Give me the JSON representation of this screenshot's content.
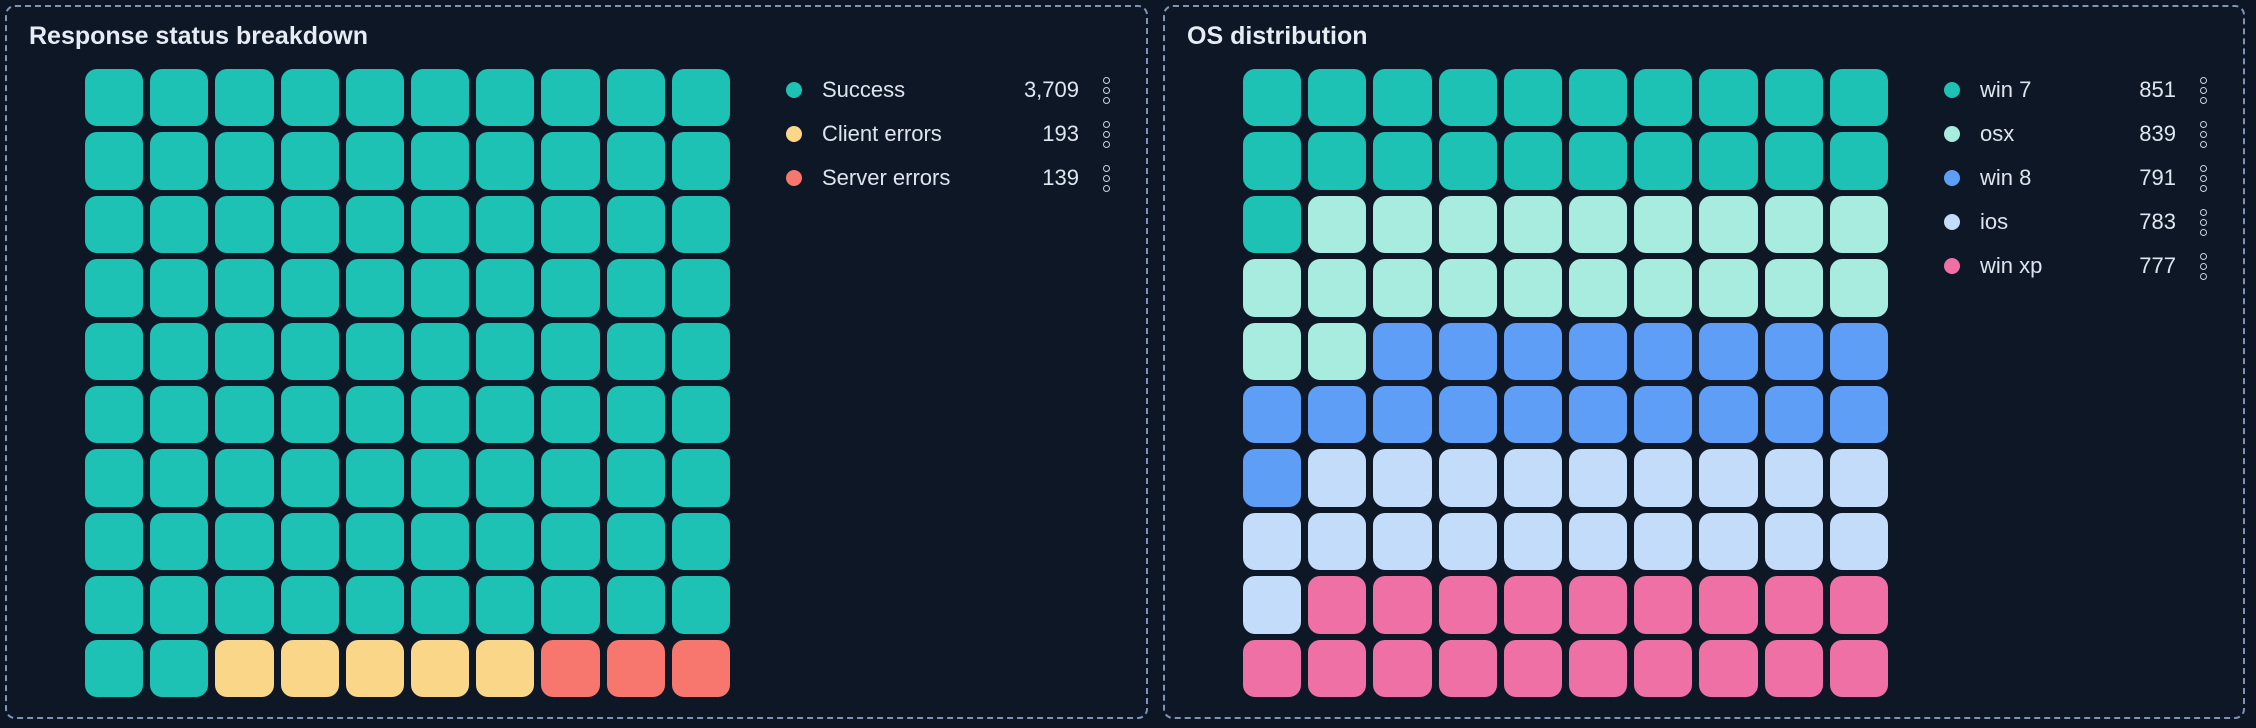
{
  "colors": {
    "page_bg": "#0c1624",
    "panel_bg": "#0d1726",
    "panel_border": "#8094b5",
    "title_text": "#e6ecf4",
    "legend_text": "#dde4ee",
    "kebab_icon": "#c9d3e2"
  },
  "panels": [
    {
      "title": "Response status breakdown",
      "grid": {
        "rows": 10,
        "cols": 10
      },
      "legend": [
        {
          "label": "Success",
          "value": "3,709",
          "color": "#1dc2b5",
          "cells": 92
        },
        {
          "label": "Client errors",
          "value": "193",
          "color": "#fad688",
          "cells": 5
        },
        {
          "label": "Server errors",
          "value": "139",
          "color": "#f7766d",
          "cells": 3
        }
      ]
    },
    {
      "title": "OS distribution",
      "grid": {
        "rows": 10,
        "cols": 10
      },
      "legend": [
        {
          "label": "win 7",
          "value": "851",
          "color": "#1dc2b5",
          "cells": 21
        },
        {
          "label": "osx",
          "value": "839",
          "color": "#a8ebdf",
          "cells": 21
        },
        {
          "label": "win 8",
          "value": "791",
          "color": "#5f9ef7",
          "cells": 19
        },
        {
          "label": "ios",
          "value": "783",
          "color": "#c3dcfa",
          "cells": 20
        },
        {
          "label": "win xp",
          "value": "777",
          "color": "#ef70a5",
          "cells": 19
        }
      ]
    }
  ],
  "chart_data": [
    {
      "type": "waffle",
      "title": "Response status breakdown",
      "grid": "10x10",
      "fill_order": "row-major-top-left",
      "categories": [
        "Success",
        "Client errors",
        "Server errors"
      ],
      "values": [
        3709,
        193,
        139
      ],
      "cells_per_category": [
        92,
        5,
        3
      ],
      "colors": [
        "#1dc2b5",
        "#fad688",
        "#f7766d"
      ],
      "legend_position": "right"
    },
    {
      "type": "waffle",
      "title": "OS distribution",
      "grid": "10x10",
      "fill_order": "row-major-top-left",
      "categories": [
        "win 7",
        "osx",
        "win 8",
        "ios",
        "win xp"
      ],
      "values": [
        851,
        839,
        791,
        783,
        777
      ],
      "cells_per_category": [
        21,
        21,
        19,
        20,
        19
      ],
      "colors": [
        "#1dc2b5",
        "#a8ebdf",
        "#5f9ef7",
        "#c3dcfa",
        "#ef70a5"
      ],
      "legend_position": "right"
    }
  ],
  "icons": {
    "legend_menu": "kebab-vertical-dots"
  }
}
